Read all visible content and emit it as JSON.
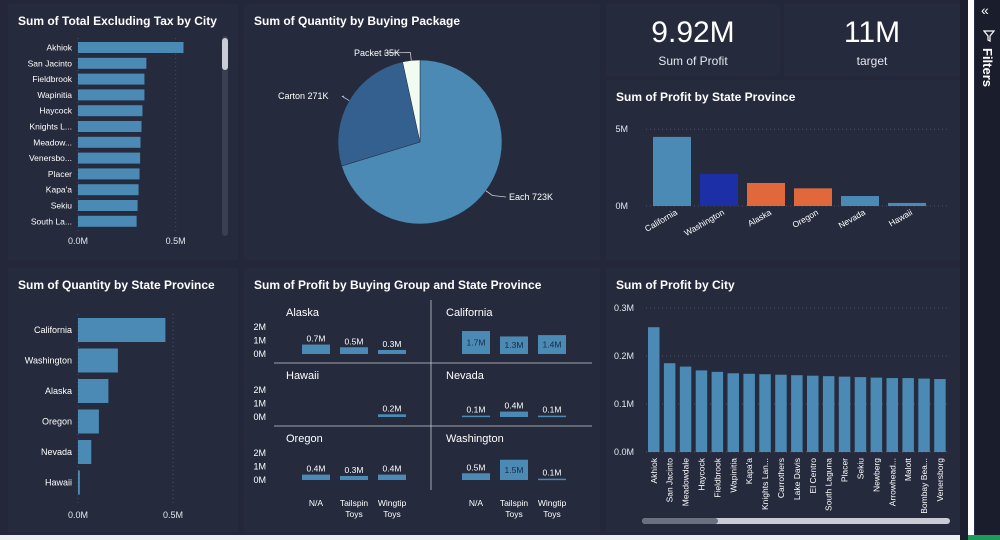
{
  "sidebar": {
    "label": "Filters",
    "collapse_icon": "double-chevron-left-icon",
    "filter_icon": "funnel-icon"
  },
  "kpis": [
    {
      "value": "9.92M",
      "label": "Sum of Profit"
    },
    {
      "value": "11M",
      "label": "target"
    }
  ],
  "chart_data": [
    {
      "id": "city-tax",
      "type": "bar",
      "orientation": "horizontal",
      "title": "Sum of Total Excluding Tax by City",
      "categories": [
        "Akhiok",
        "San Jacinto",
        "Fieldbrook",
        "Wapinitia",
        "Haycock",
        "Knights L...",
        "Meadow...",
        "Venersbo...",
        "Placer",
        "Kapa'a",
        "Sekiu",
        "South La..."
      ],
      "values": [
        0.54,
        0.35,
        0.34,
        0.34,
        0.33,
        0.325,
        0.32,
        0.318,
        0.315,
        0.31,
        0.305,
        0.3
      ],
      "ticks": [
        "0.0M",
        "0.5M"
      ],
      "xlim": [
        0,
        0.65
      ],
      "color": "#4a8ab4"
    },
    {
      "id": "buying-package",
      "type": "pie",
      "title": "Sum of Quantity by Buying Package",
      "slices": [
        {
          "name": "Each",
          "label": "Each 723K",
          "value": 723,
          "color": "#4a8ab4"
        },
        {
          "name": "Carton",
          "label": "Carton 271K",
          "value": 271,
          "color": "#34608f"
        },
        {
          "name": "Packet",
          "label": "Packet 35K",
          "value": 35,
          "color": "#f2fbf0"
        }
      ]
    },
    {
      "id": "profit-state",
      "type": "bar",
      "title": "Sum of Profit by State Province",
      "categories": [
        "California",
        "Washington",
        "Alaska",
        "Oregon",
        "Nevada",
        "Hawaii"
      ],
      "values": [
        4.5,
        2.1,
        1.5,
        1.15,
        0.65,
        0.2
      ],
      "colors": [
        "#4a8ab4",
        "#1d2fa6",
        "#e0683a",
        "#e0683a",
        "#4a8ab4",
        "#4a8ab4"
      ],
      "ticks": [
        {
          "label": "5M",
          "value": 5
        },
        {
          "label": "0M",
          "value": 0
        }
      ],
      "ylim": [
        0,
        5.6
      ]
    },
    {
      "id": "qty-state",
      "type": "bar",
      "orientation": "horizontal",
      "title": "Sum of Quantity by State Province",
      "categories": [
        "California",
        "Washington",
        "Alaska",
        "Oregon",
        "Nevada",
        "Hawaii"
      ],
      "values": [
        0.46,
        0.21,
        0.16,
        0.11,
        0.07,
        0.01
      ],
      "ticks": [
        "0.0M",
        "0.5M"
      ],
      "xlim": [
        0,
        0.6
      ],
      "color": "#4a8ab4"
    },
    {
      "id": "profit-group-state",
      "type": "bar",
      "title": "Sum of Profit by Buying Group and State Province",
      "categories": [
        "N/A",
        "Tailspin Toys",
        "Wingtip Toys"
      ],
      "category_lines": [
        [
          "N/A"
        ],
        [
          "Tailspin",
          "Toys"
        ],
        [
          "Wingtip",
          "Toys"
        ]
      ],
      "y_ticks": [
        "2M",
        "1M",
        "0M"
      ],
      "ylim": [
        0,
        2.2
      ],
      "panels": [
        {
          "state": "Alaska",
          "values": [
            0.7,
            0.5,
            0.3
          ],
          "labels": [
            "0.7M",
            "0.5M",
            "0.3M"
          ]
        },
        {
          "state": "California",
          "values": [
            1.7,
            1.3,
            1.4
          ],
          "labels": [
            "1.7M",
            "1.3M",
            "1.4M"
          ]
        },
        {
          "state": "Hawaii",
          "values": [
            0,
            0,
            0.2
          ],
          "labels": [
            "",
            "",
            "0.2M"
          ]
        },
        {
          "state": "Nevada",
          "values": [
            0.1,
            0.4,
            0.1
          ],
          "labels": [
            "0.1M",
            "0.4M",
            "0.1M"
          ]
        },
        {
          "state": "Oregon",
          "values": [
            0.4,
            0.3,
            0.4
          ],
          "labels": [
            "0.4M",
            "0.3M",
            "0.4M"
          ]
        },
        {
          "state": "Washington",
          "values": [
            0.5,
            1.5,
            0.1
          ],
          "labels": [
            "0.5M",
            "1.5M",
            "0.1M"
          ]
        }
      ]
    },
    {
      "id": "profit-city",
      "type": "bar",
      "title": "Sum of Profit by City",
      "categories": [
        "Akhiok",
        "San Jacinto",
        "Meadowdale",
        "Haycock",
        "Fieldbrook",
        "Wapinitia",
        "Kapa'a",
        "Knights Lan...",
        "Carrothers",
        "Lake Davis",
        "El Centro",
        "South Laguna",
        "Placer",
        "Sekiu",
        "Newberg",
        "Arrowhead...",
        "Malott",
        "Bombay Bea...",
        "Venersborg"
      ],
      "values": [
        0.26,
        0.185,
        0.178,
        0.17,
        0.167,
        0.164,
        0.163,
        0.162,
        0.161,
        0.16,
        0.159,
        0.158,
        0.157,
        0.156,
        0.155,
        0.154,
        0.154,
        0.153,
        0.152
      ],
      "ticks": [
        {
          "label": "0.3M",
          "value": 0.3
        },
        {
          "label": "0.2M",
          "value": 0.2
        },
        {
          "label": "0.1M",
          "value": 0.1
        },
        {
          "label": "0.0M",
          "value": 0
        }
      ],
      "ylim": [
        0,
        0.3
      ],
      "color": "#4a8ab4"
    }
  ]
}
